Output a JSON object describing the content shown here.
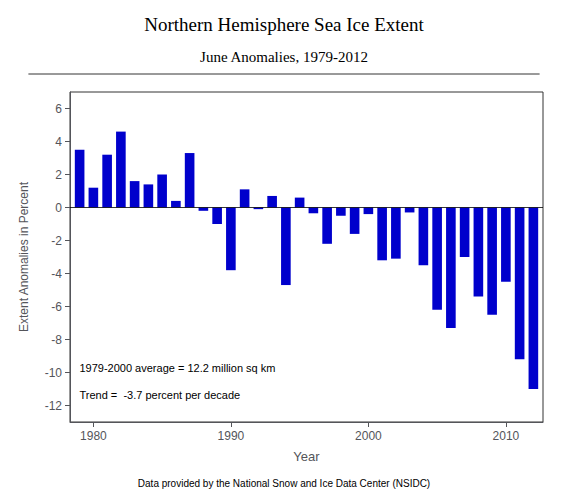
{
  "chart_data": {
    "type": "bar",
    "title": "Northern Hemisphere Sea Ice Extent",
    "subtitle": "June Anomalies, 1979-2012",
    "xlabel": "Year",
    "ylabel": "Extent Anomalies in Percent",
    "annotations": [
      "1979-2000 average = 12.2 million sq km",
      "Trend =  -3.7 percent per decade"
    ],
    "footer": "Data provided by the National Snow and Ice Data Center (NSIDC)",
    "x": [
      1979,
      1980,
      1981,
      1982,
      1983,
      1984,
      1985,
      1986,
      1987,
      1988,
      1989,
      1990,
      1991,
      1992,
      1993,
      1994,
      1995,
      1996,
      1997,
      1998,
      1999,
      2000,
      2001,
      2002,
      2003,
      2004,
      2005,
      2006,
      2007,
      2008,
      2009,
      2010,
      2011,
      2012
    ],
    "values": [
      3.5,
      1.2,
      3.2,
      4.6,
      1.6,
      1.4,
      2.0,
      0.4,
      3.3,
      -0.2,
      -1.0,
      -3.8,
      1.1,
      -0.1,
      0.7,
      -4.7,
      0.6,
      -0.35,
      -2.2,
      -0.5,
      -1.6,
      -0.4,
      -3.2,
      -3.1,
      -0.3,
      -3.5,
      -6.2,
      -7.3,
      -3.0,
      -5.4,
      -6.5,
      -4.5,
      -9.2,
      -11.0
    ],
    "color": "#0000CC",
    "xlim": [
      1978.3,
      2012.7
    ],
    "xticks": [
      1980,
      1990,
      2000,
      2010
    ],
    "ylim": [
      -13,
      7
    ],
    "yticks": [
      -12,
      -10,
      -8,
      -6,
      -4,
      -2,
      0,
      2,
      4,
      6
    ],
    "grid": false
  }
}
